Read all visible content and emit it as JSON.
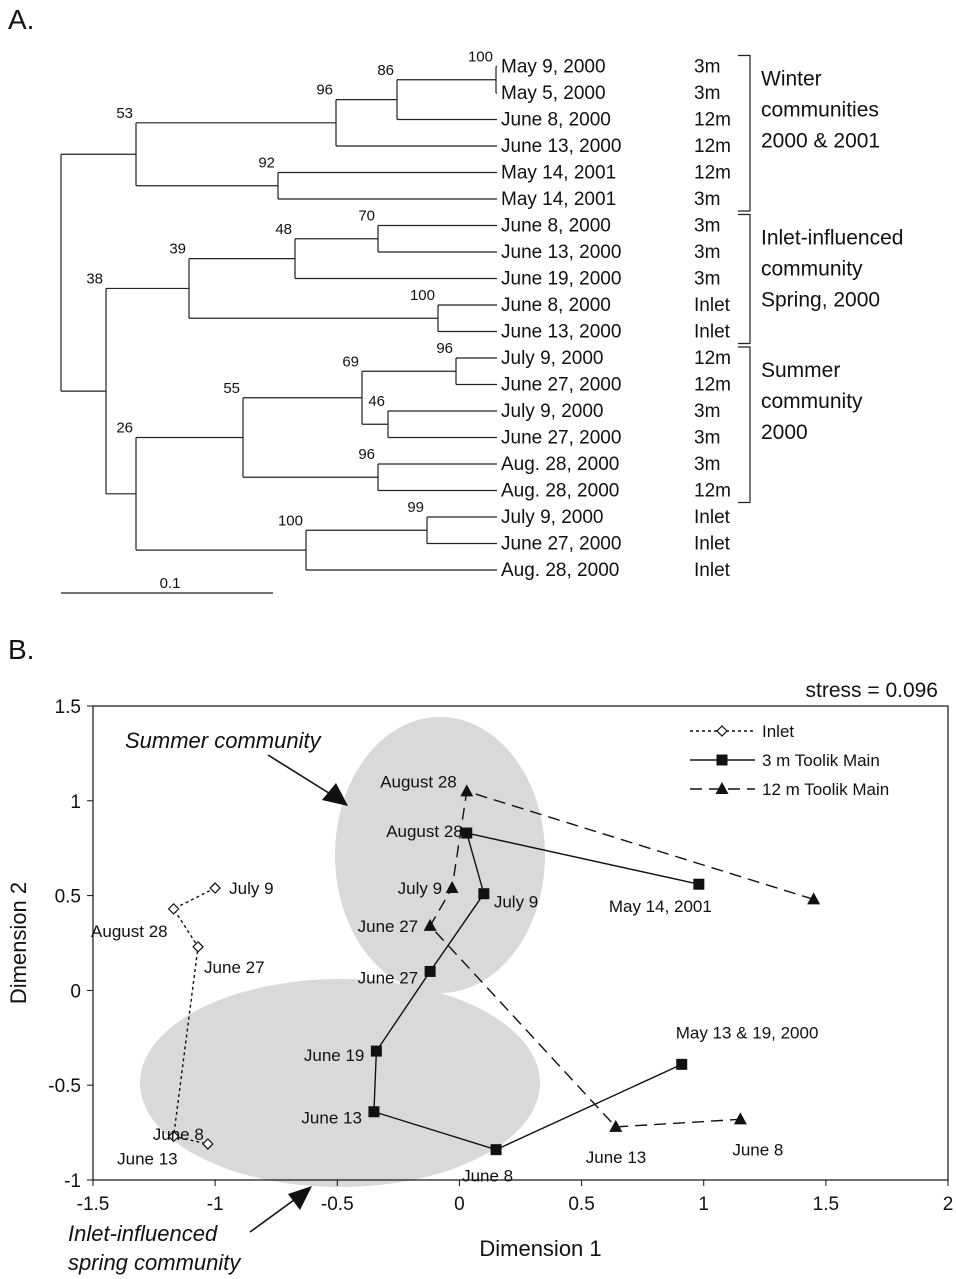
{
  "chart_data": [
    {
      "type": "dendrogram",
      "panel": "A.",
      "scale_bar": "0.1",
      "leaves": [
        {
          "id": "L1",
          "date": "May 9, 2000",
          "depth": "3m"
        },
        {
          "id": "L2",
          "date": "May 5, 2000",
          "depth": "3m"
        },
        {
          "id": "L3",
          "date": "June 8, 2000",
          "depth": "12m"
        },
        {
          "id": "L4",
          "date": "June 13, 2000",
          "depth": "12m"
        },
        {
          "id": "L5",
          "date": "May 14, 2001",
          "depth": "12m"
        },
        {
          "id": "L6",
          "date": "May 14, 2001",
          "depth": "3m"
        },
        {
          "id": "L7",
          "date": "June 8, 2000",
          "depth": "3m"
        },
        {
          "id": "L8",
          "date": "June 13, 2000",
          "depth": "3m"
        },
        {
          "id": "L9",
          "date": "June 19, 2000",
          "depth": "3m"
        },
        {
          "id": "L10",
          "date": "June 8, 2000",
          "depth": "Inlet"
        },
        {
          "id": "L11",
          "date": "June 13, 2000",
          "depth": "Inlet"
        },
        {
          "id": "L12",
          "date": "July 9, 2000",
          "depth": "12m"
        },
        {
          "id": "L13",
          "date": "June 27, 2000",
          "depth": "12m"
        },
        {
          "id": "L14",
          "date": "July 9, 2000",
          "depth": "3m"
        },
        {
          "id": "L15",
          "date": "June 27, 2000",
          "depth": "3m"
        },
        {
          "id": "L16",
          "date": "Aug. 28, 2000",
          "depth": "3m"
        },
        {
          "id": "L17",
          "date": "Aug. 28, 2000",
          "depth": "12m"
        },
        {
          "id": "L18",
          "date": "July 9, 2000",
          "depth": "Inlet"
        },
        {
          "id": "L19",
          "date": "June 27, 2000",
          "depth": "Inlet"
        },
        {
          "id": "L20",
          "date": "Aug. 28, 2000",
          "depth": "Inlet"
        }
      ],
      "bootstrap_values": [
        "100",
        "86",
        "96",
        "53",
        "92",
        "70",
        "48",
        "39",
        "100",
        "38",
        "96",
        "69",
        "46",
        "55",
        "96",
        "26",
        "99",
        "100"
      ],
      "groups": [
        {
          "lines": [
            "Winter",
            "communities",
            "2000 & 2001"
          ]
        },
        {
          "lines": [
            "Inlet-influenced",
            "community",
            "Spring, 2000"
          ]
        },
        {
          "lines": [
            "Summer",
            "community",
            "2000"
          ]
        }
      ]
    },
    {
      "type": "scatter",
      "panel": "B.",
      "stress": "stress = 0.096",
      "xlabel": "Dimension 1",
      "ylabel": "Dimension 2",
      "xlim": [
        -1.5,
        2
      ],
      "ylim": [
        -1,
        1.5
      ],
      "xticks": [
        "-1.5",
        "-1",
        "-0.5",
        "0",
        "0.5",
        "1",
        "1.5",
        "2"
      ],
      "yticks": [
        "-1",
        "-0.5",
        "0",
        "0.5",
        "1",
        "1.5"
      ],
      "series": [
        {
          "name": "Inlet",
          "marker": "diamond-open",
          "line": "dotted",
          "points": [
            {
              "x": -1.0,
              "y": 0.54,
              "label": "July 9"
            },
            {
              "x": -1.17,
              "y": 0.43,
              "label": "August 28"
            },
            {
              "x": -1.07,
              "y": 0.23,
              "label": "June 27"
            },
            {
              "x": -1.17,
              "y": -0.77,
              "label": "June 13"
            },
            {
              "x": -1.03,
              "y": -0.81,
              "label": "June 8"
            }
          ]
        },
        {
          "name": "3 m Toolik Main",
          "marker": "square",
          "line": "solid",
          "points": [
            {
              "x": 0.98,
              "y": 0.56,
              "label": "May 14, 2001"
            },
            {
              "x": 0.03,
              "y": 0.83,
              "label": "August 28"
            },
            {
              "x": 0.1,
              "y": 0.51,
              "label": "July 9"
            },
            {
              "x": -0.12,
              "y": 0.1,
              "label": "June 27"
            },
            {
              "x": -0.34,
              "y": -0.32,
              "label": "June 19"
            },
            {
              "x": -0.35,
              "y": -0.64,
              "label": "June 13"
            },
            {
              "x": 0.15,
              "y": -0.84,
              "label": "June 8"
            },
            {
              "x": 0.91,
              "y": -0.39,
              "label": "May 13 & 19, 2000"
            }
          ]
        },
        {
          "name": "12 m Toolik Main",
          "marker": "triangle",
          "line": "dashed",
          "points": [
            {
              "x": 1.45,
              "y": 0.48,
              "label": ""
            },
            {
              "x": 0.03,
              "y": 1.05,
              "label": "August 28"
            },
            {
              "x": -0.03,
              "y": 0.54,
              "label": "July 9"
            },
            {
              "x": -0.12,
              "y": 0.34,
              "label": "June 27"
            },
            {
              "x": 0.64,
              "y": -0.72,
              "label": "June 13"
            },
            {
              "x": 1.15,
              "y": -0.68,
              "label": "June 8"
            }
          ]
        }
      ],
      "annotations": [
        {
          "lines": [
            "Summer community"
          ]
        },
        {
          "lines": [
            "Inlet-influenced",
            "spring community"
          ]
        }
      ],
      "colors": {
        "ellipse": "#d9d9d9",
        "ink": "#111111"
      },
      "legend_position": "top-right"
    }
  ]
}
